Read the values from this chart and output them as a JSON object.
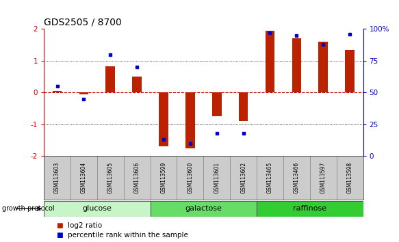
{
  "title": "GDS2505 / 8700",
  "samples": [
    "GSM113603",
    "GSM113604",
    "GSM113605",
    "GSM113606",
    "GSM113599",
    "GSM113600",
    "GSM113601",
    "GSM113602",
    "GSM113465",
    "GSM113466",
    "GSM113597",
    "GSM113598"
  ],
  "log2_ratio": [
    0.05,
    -0.05,
    0.82,
    0.5,
    -1.7,
    -1.75,
    -0.75,
    -0.9,
    1.95,
    1.7,
    1.6,
    1.35
  ],
  "percentile_rank": [
    55,
    45,
    80,
    70,
    13,
    10,
    18,
    18,
    97,
    95,
    88,
    96
  ],
  "groups": [
    {
      "label": "glucose",
      "start": 0,
      "end": 4,
      "color": "#c8f5c8"
    },
    {
      "label": "galactose",
      "start": 4,
      "end": 8,
      "color": "#66dd66"
    },
    {
      "label": "raffinose",
      "start": 8,
      "end": 12,
      "color": "#33cc33"
    }
  ],
  "bar_color": "#bb2200",
  "dot_color": "#0000cc",
  "ylim": [
    -2,
    2
  ],
  "yticks_left": [
    -2,
    -1,
    0,
    1,
    2
  ],
  "yticks_right": [
    0,
    25,
    50,
    75,
    100
  ],
  "hline0_color": "#cc0000",
  "hline1_color": "#000000",
  "title_fontsize": 10,
  "tick_fontsize": 7.5,
  "legend_items": [
    "log2 ratio",
    "percentile rank within the sample"
  ],
  "legend_colors": [
    "#bb2200",
    "#0000cc"
  ],
  "sample_box_color": "#cccccc",
  "sample_box_edge": "#888888",
  "group_edge_color": "#555555",
  "bar_width": 0.35
}
